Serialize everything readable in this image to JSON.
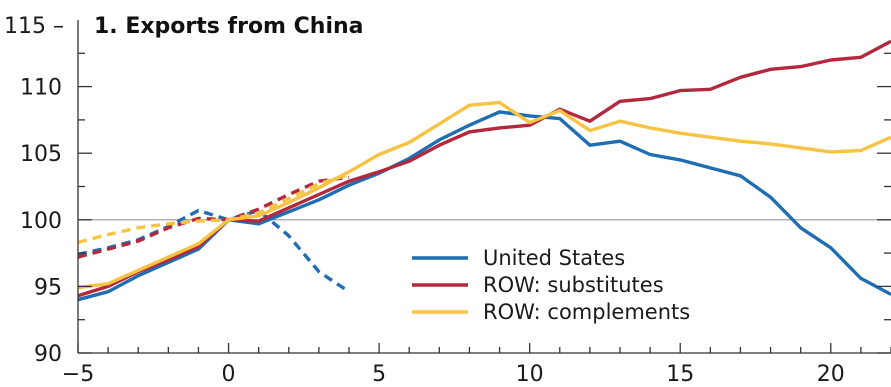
{
  "chart_data": {
    "type": "line",
    "title": "1. Exports from China",
    "title_prefix": "115 –",
    "xlabel": "",
    "ylabel": "",
    "xlim": [
      -5,
      22
    ],
    "ylim": [
      90,
      115
    ],
    "x_ticks": [
      -5,
      0,
      5,
      10,
      15,
      20
    ],
    "x_tick_labels": [
      "−5",
      "0",
      "5",
      "10",
      "15",
      "20"
    ],
    "y_ticks": [
      90,
      95,
      100,
      105,
      110
    ],
    "y_tick_labels": [
      "90",
      "95",
      "100",
      "105",
      "110"
    ],
    "reference_line": 100,
    "legend_position": "bottom-center",
    "series": [
      {
        "name": "United States",
        "color": "#1f6db3",
        "style": "solid",
        "points": [
          [
            -5,
            94.0
          ],
          [
            -4,
            94.6
          ],
          [
            -3,
            95.8
          ],
          [
            -2,
            96.8
          ],
          [
            -1,
            97.8
          ],
          [
            0,
            100.0
          ],
          [
            1,
            99.7
          ],
          [
            2,
            100.6
          ],
          [
            3,
            101.5
          ],
          [
            4,
            102.6
          ],
          [
            5,
            103.5
          ],
          [
            6,
            104.6
          ],
          [
            7,
            106.0
          ],
          [
            8,
            107.1
          ],
          [
            9,
            108.1
          ],
          [
            10,
            107.8
          ],
          [
            11,
            107.6
          ],
          [
            12,
            105.6
          ],
          [
            13,
            105.9
          ],
          [
            14,
            104.9
          ],
          [
            15,
            104.5
          ],
          [
            16,
            103.9
          ],
          [
            17,
            103.3
          ],
          [
            18,
            101.7
          ],
          [
            19,
            99.4
          ],
          [
            20,
            97.9
          ],
          [
            21,
            95.6
          ],
          [
            22,
            94.4
          ]
        ]
      },
      {
        "name": "ROW: substitutes",
        "color": "#b3283c",
        "style": "solid",
        "points": [
          [
            -5,
            94.3
          ],
          [
            -4,
            95.0
          ],
          [
            -3,
            96.1
          ],
          [
            -2,
            97.0
          ],
          [
            -1,
            98.0
          ],
          [
            0,
            100.0
          ],
          [
            1,
            99.9
          ],
          [
            2,
            100.9
          ],
          [
            3,
            101.9
          ],
          [
            4,
            102.9
          ],
          [
            5,
            103.6
          ],
          [
            6,
            104.4
          ],
          [
            7,
            105.6
          ],
          [
            8,
            106.6
          ],
          [
            9,
            106.9
          ],
          [
            10,
            107.1
          ],
          [
            11,
            108.3
          ],
          [
            12,
            107.4
          ],
          [
            13,
            108.9
          ],
          [
            14,
            109.1
          ],
          [
            15,
            109.7
          ],
          [
            16,
            109.8
          ],
          [
            17,
            110.7
          ],
          [
            18,
            111.3
          ],
          [
            19,
            111.5
          ],
          [
            20,
            112.0
          ],
          [
            21,
            112.2
          ],
          [
            22,
            113.4
          ]
        ]
      },
      {
        "name": "ROW: complements",
        "color": "#f7c343",
        "style": "solid",
        "points": [
          [
            -5,
            94.9
          ],
          [
            -4,
            95.2
          ],
          [
            -3,
            96.2
          ],
          [
            -2,
            97.2
          ],
          [
            -1,
            98.2
          ],
          [
            0,
            100.0
          ],
          [
            1,
            100.3
          ],
          [
            2,
            101.3
          ],
          [
            3,
            102.4
          ],
          [
            4,
            103.6
          ],
          [
            5,
            104.9
          ],
          [
            6,
            105.8
          ],
          [
            7,
            107.2
          ],
          [
            8,
            108.6
          ],
          [
            9,
            108.8
          ],
          [
            10,
            107.3
          ],
          [
            11,
            108.2
          ],
          [
            12,
            106.7
          ],
          [
            13,
            107.4
          ],
          [
            14,
            106.9
          ],
          [
            15,
            106.5
          ],
          [
            16,
            106.2
          ],
          [
            17,
            105.9
          ],
          [
            18,
            105.7
          ],
          [
            19,
            105.4
          ],
          [
            20,
            105.1
          ],
          [
            21,
            105.2
          ],
          [
            22,
            106.2
          ]
        ]
      },
      {
        "name": "",
        "color": "#1f6db3",
        "style": "dashed",
        "points": [
          [
            -5,
            97.4
          ],
          [
            -4,
            97.9
          ],
          [
            -3,
            98.5
          ],
          [
            -2,
            99.5
          ],
          [
            -1,
            100.7
          ],
          [
            0,
            100.0
          ],
          [
            1,
            100.7
          ],
          [
            2,
            98.8
          ],
          [
            3,
            96.1
          ],
          [
            4,
            94.6
          ]
        ]
      },
      {
        "name": "",
        "color": "#b3283c",
        "style": "dashed",
        "points": [
          [
            -5,
            97.2
          ],
          [
            -4,
            97.8
          ],
          [
            -3,
            98.4
          ],
          [
            -2,
            99.4
          ],
          [
            -1,
            100.1
          ],
          [
            0,
            100.0
          ],
          [
            1,
            100.8
          ],
          [
            2,
            101.9
          ],
          [
            3,
            102.9
          ],
          [
            4,
            103.2
          ]
        ]
      },
      {
        "name": "",
        "color": "#f7c343",
        "style": "dashed",
        "points": [
          [
            -5,
            98.3
          ],
          [
            -4,
            98.9
          ],
          [
            -3,
            99.4
          ],
          [
            -2,
            99.7
          ],
          [
            -1,
            99.9
          ],
          [
            0,
            100.0
          ],
          [
            1,
            100.5
          ],
          [
            2,
            101.6
          ],
          [
            3,
            102.7
          ],
          [
            4,
            103.4
          ]
        ]
      }
    ]
  }
}
